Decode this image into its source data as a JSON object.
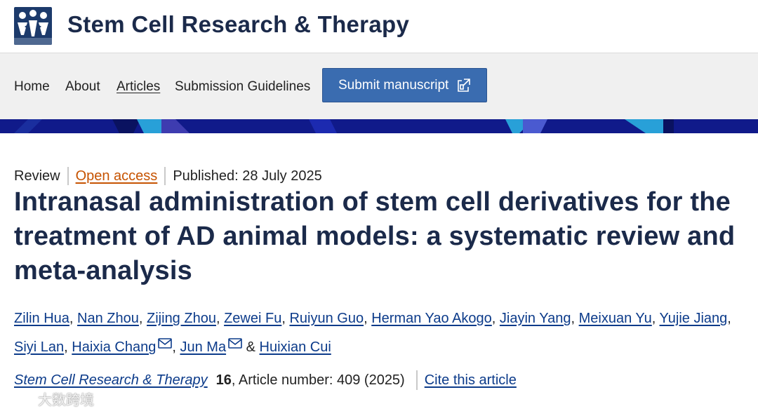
{
  "header": {
    "journal_title": "Stem Cell Research & Therapy",
    "logo_icon": "journal-logo-icon"
  },
  "nav": {
    "items": [
      {
        "label": "Home"
      },
      {
        "label": "About"
      },
      {
        "label": "Articles",
        "active": true
      },
      {
        "label": "Submission Guidelines"
      }
    ],
    "submit_label": "Submit manuscript",
    "submit_icon": "external-link-icon"
  },
  "article": {
    "type": "Review",
    "access": "Open access",
    "published": "Published: 28 July 2025",
    "title": "Intranasal administration of stem cell derivatives for the treatment of AD animal models: a systematic review and meta-analysis",
    "authors": [
      {
        "name": "Zilin Hua",
        "sep": ", "
      },
      {
        "name": "Nan Zhou",
        "sep": ", "
      },
      {
        "name": "Zijing Zhou",
        "sep": ", "
      },
      {
        "name": "Zewei Fu",
        "sep": ", "
      },
      {
        "name": "Ruiyun Guo",
        "sep": ", "
      },
      {
        "name": "Herman Yao Akogo",
        "sep": ", "
      },
      {
        "name": "Jiayin Yang",
        "sep": ", "
      },
      {
        "name": "Meixuan Yu",
        "sep": ", "
      },
      {
        "name": "Yujie Jiang",
        "sep": ", "
      },
      {
        "name": "Siyi Lan",
        "sep": ", "
      },
      {
        "name": "Haixia Chang",
        "sep": ", ",
        "email": true
      },
      {
        "name": "Jun Ma",
        "sep": " & ",
        "email": true
      },
      {
        "name": "Huixian Cui",
        "sep": ""
      }
    ],
    "citation": {
      "journal": "Stem Cell Research & Therapy",
      "volume": "16",
      "article_number": ", Article number: 409 (2025)",
      "cite_label": "Cite this article"
    }
  },
  "watermark": {
    "text": "大数跨境"
  },
  "colors": {
    "title": "#1b2a4a",
    "link": "#0c3b8a",
    "open_access": "#c65301",
    "button": "#3a6cb0",
    "banner": "#101a8a",
    "nav_bg": "#f0f0f0"
  }
}
